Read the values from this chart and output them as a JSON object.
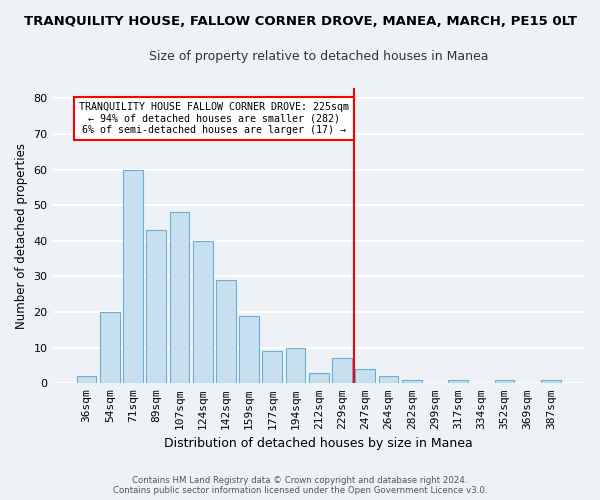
{
  "title": "TRANQUILITY HOUSE, FALLOW CORNER DROVE, MANEA, MARCH, PE15 0LT",
  "subtitle": "Size of property relative to detached houses in Manea",
  "xlabel": "Distribution of detached houses by size in Manea",
  "ylabel": "Number of detached properties",
  "bar_labels": [
    "36sqm",
    "54sqm",
    "71sqm",
    "89sqm",
    "107sqm",
    "124sqm",
    "142sqm",
    "159sqm",
    "177sqm",
    "194sqm",
    "212sqm",
    "229sqm",
    "247sqm",
    "264sqm",
    "282sqm",
    "299sqm",
    "317sqm",
    "334sqm",
    "352sqm",
    "369sqm",
    "387sqm"
  ],
  "bar_values": [
    2,
    20,
    60,
    43,
    48,
    40,
    29,
    19,
    9,
    10,
    3,
    7,
    4,
    2,
    1,
    0,
    1,
    0,
    1,
    0,
    1
  ],
  "bar_color": "#c8dff0",
  "bar_edge_color": "#6aaed6",
  "vline_x": 11.5,
  "vline_color": "red",
  "annotation_title": "TRANQUILITY HOUSE FALLOW CORNER DROVE: 225sqm",
  "annotation_line1": "← 94% of detached houses are smaller (282)",
  "annotation_line2": "6% of semi-detached houses are larger (17) →",
  "annotation_box_color": "white",
  "annotation_box_edge": "red",
  "ylim": [
    0,
    83
  ],
  "yticks": [
    0,
    10,
    20,
    30,
    40,
    50,
    60,
    70,
    80
  ],
  "footer1": "Contains HM Land Registry data © Crown copyright and database right 2024.",
  "footer2": "Contains public sector information licensed under the Open Government Licence v3.0.",
  "bg_color": "#eef2f7",
  "grid_color": "white",
  "title_fontsize": 9.5,
  "subtitle_fontsize": 9
}
